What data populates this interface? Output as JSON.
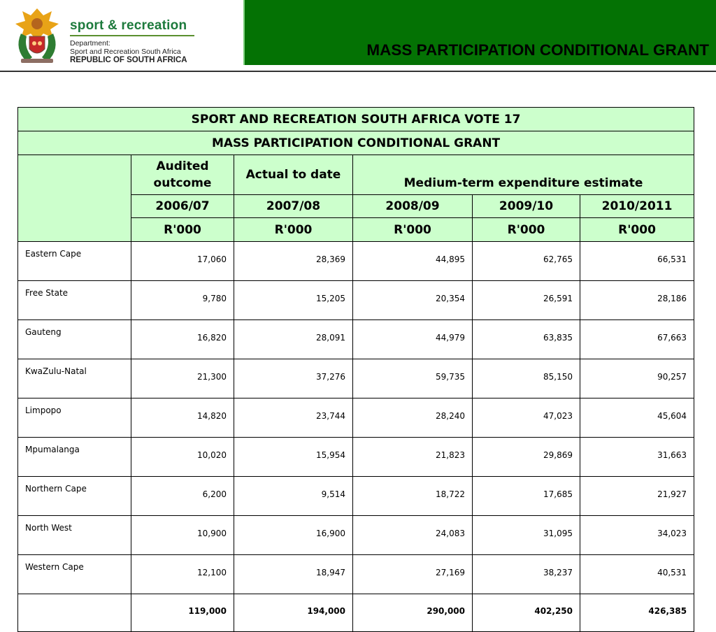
{
  "header": {
    "brand_name": "sport & recreation",
    "dept_line1": "Department:",
    "dept_line2": "Sport and Recreation South Africa",
    "dept_line3": "REPUBLIC OF SOUTH AFRICA",
    "slide_title": "MASS PARTICIPATION CONDITIONAL GRANT",
    "title_bar_color": "#047204",
    "brand_color": "#1d7a3c"
  },
  "table": {
    "title1": "SPORT AND RECREATION SOUTH AFRICA VOTE 17",
    "title2": "MASS PARTICIPATION CONDITIONAL GRANT",
    "group_headers": {
      "audited": "Audited outcome",
      "actual": "Actual to date",
      "mtee": "Medium-term expenditure estimate"
    },
    "years": [
      "2006/07",
      "2007/08",
      "2008/09",
      "2009/10",
      "2010/2011"
    ],
    "units": [
      "R'000",
      "R'000",
      "R'000",
      "R'000",
      "R'000"
    ],
    "rows": [
      {
        "province": "Eastern Cape",
        "values": [
          "17,060",
          "28,369",
          "44,895",
          "62,765",
          "66,531"
        ]
      },
      {
        "province": "Free State",
        "values": [
          "9,780",
          "15,205",
          "20,354",
          "26,591",
          "28,186"
        ]
      },
      {
        "province": "Gauteng",
        "values": [
          "16,820",
          "28,091",
          "44,979",
          "63,835",
          "67,663"
        ]
      },
      {
        "province": "KwaZulu-Natal",
        "values": [
          "21,300",
          "37,276",
          "59,735",
          "85,150",
          "90,257"
        ]
      },
      {
        "province": "Limpopo",
        "values": [
          "14,820",
          "23,744",
          "28,240",
          "47,023",
          "45,604"
        ]
      },
      {
        "province": "Mpumalanga",
        "values": [
          "10,020",
          "15,954",
          "21,823",
          "29,869",
          "31,663"
        ]
      },
      {
        "province": "Northern Cape",
        "values": [
          "6,200",
          "9,514",
          "18,722",
          "17,685",
          "21,927"
        ]
      },
      {
        "province": "North West",
        "values": [
          "10,900",
          "16,900",
          "24,083",
          "31,095",
          "34,023"
        ]
      },
      {
        "province": "Western Cape",
        "values": [
          "12,100",
          "18,947",
          "27,169",
          "38,237",
          "40,531"
        ]
      }
    ],
    "totals": [
      "119,000",
      "194,000",
      "290,000",
      "402,250",
      "426,385"
    ],
    "header_bg": "#ccffcc"
  }
}
